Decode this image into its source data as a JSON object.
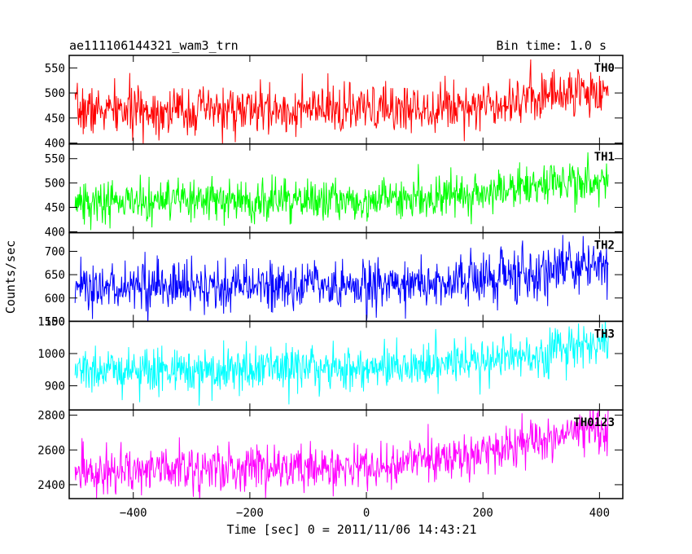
{
  "chart_data": {
    "type": "line",
    "title": "ae111106144321_wam3_trn",
    "subtitle": "Bin time: 1.0 s",
    "xlabel": "Time [sec] 0 = 2011/11/06 14:43:21",
    "ylabel": "Counts/sec",
    "xlim": [
      -510,
      440
    ],
    "x_ticks": [
      -400,
      -200,
      0,
      200,
      400
    ],
    "x_tick_labels": [
      "−400",
      "−200",
      "0",
      "200",
      "400"
    ],
    "x_range": [
      -500,
      415
    ],
    "bin": 1.0,
    "grid": false,
    "legend": "none",
    "panels": [
      {
        "name": "TH0",
        "color": "#ff0000",
        "ylim": [
          398,
          575
        ],
        "yticks": [
          400,
          450,
          500,
          550
        ],
        "ytick_labels": [
          "400",
          "450",
          "500",
          "550"
        ],
        "trend": [
          [
            -500,
            465
          ],
          [
            0,
            465
          ],
          [
            200,
            478
          ],
          [
            330,
            500
          ],
          [
            415,
            505
          ]
        ],
        "noise_sd": 24
      },
      {
        "name": "TH1",
        "color": "#00ff00",
        "ylim": [
          398,
          580
        ],
        "yticks": [
          400,
          450,
          500,
          550
        ],
        "ytick_labels": [
          "400",
          "450",
          "500",
          "550"
        ],
        "trend": [
          [
            -500,
            460
          ],
          [
            0,
            465
          ],
          [
            200,
            480
          ],
          [
            330,
            500
          ],
          [
            415,
            505
          ]
        ],
        "noise_sd": 22
      },
      {
        "name": "TH2",
        "color": "#0000ff",
        "ylim": [
          550,
          740
        ],
        "yticks": [
          550,
          600,
          650,
          700
        ],
        "ytick_labels": [
          "550",
          "600",
          "650",
          "700"
        ],
        "trend": [
          [
            -500,
            625
          ],
          [
            0,
            625
          ],
          [
            200,
            640
          ],
          [
            330,
            660
          ],
          [
            415,
            670
          ]
        ],
        "noise_sd": 27
      },
      {
        "name": "TH3",
        "color": "#00ffff",
        "ylim": [
          825,
          1100
        ],
        "yticks": [
          900,
          1000,
          1100
        ],
        "ytick_labels": [
          "900",
          "1000",
          "1100"
        ],
        "trend": [
          [
            -500,
            945
          ],
          [
            0,
            955
          ],
          [
            200,
            980
          ],
          [
            330,
            1010
          ],
          [
            415,
            1030
          ]
        ],
        "noise_sd": 35
      },
      {
        "name": "TH0123",
        "color": "#ff00ff",
        "ylim": [
          2320,
          2830
        ],
        "yticks": [
          2400,
          2600,
          2800
        ],
        "ytick_labels": [
          "2400",
          "2600",
          "2800"
        ],
        "trend": [
          [
            -500,
            2490
          ],
          [
            0,
            2500
          ],
          [
            150,
            2550
          ],
          [
            250,
            2620
          ],
          [
            330,
            2700
          ],
          [
            415,
            2740
          ]
        ],
        "noise_sd": 65
      }
    ]
  }
}
